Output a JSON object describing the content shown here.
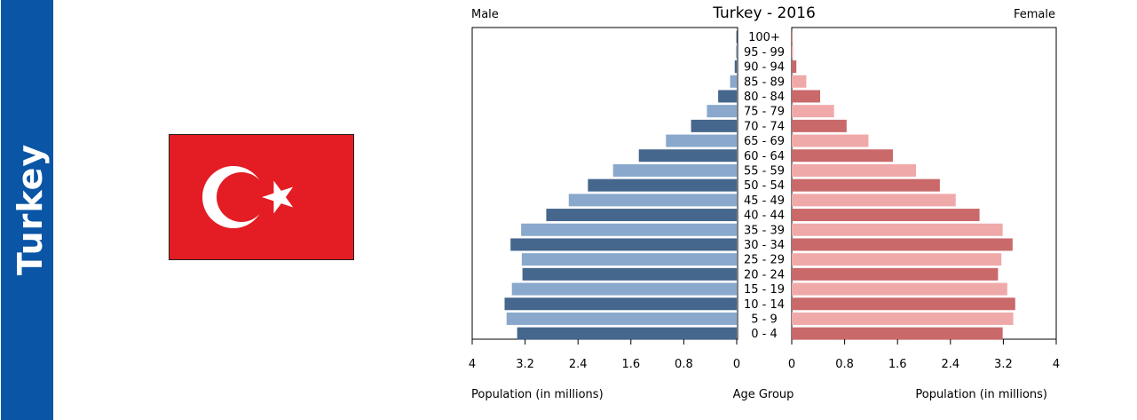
{
  "country_label": "Turkey",
  "flag": {
    "icon": "turkey-flag-icon",
    "field_color": "#e31d23",
    "emblem_color": "#ffffff"
  },
  "chart_data": {
    "type": "population-pyramid",
    "title": "Turkey - 2016",
    "left_label": "Male",
    "right_label": "Female",
    "xlabel_left": "Population (in millions)",
    "xlabel_center": "Age Group",
    "xlabel_right": "Population (in millions)",
    "xlim": [
      0,
      4
    ],
    "ticks": [
      0,
      0.8,
      1.6,
      2.4,
      3.2,
      4
    ],
    "tick_labels_left": [
      "4",
      "3.2",
      "2.4",
      "1.6",
      "0.8",
      "0"
    ],
    "tick_labels_right": [
      "0",
      "0.8",
      "1.6",
      "2.4",
      "3.2",
      "4"
    ],
    "age_groups": [
      "0 - 4",
      "5 - 9",
      "10 - 14",
      "15 - 19",
      "20 - 24",
      "25 - 29",
      "30 - 34",
      "35 - 39",
      "40 - 44",
      "45 - 49",
      "50 - 54",
      "55 - 59",
      "60 - 64",
      "65 - 69",
      "70 - 74",
      "75 - 79",
      "80 - 84",
      "85 - 89",
      "90 - 94",
      "95 - 99",
      "100+"
    ],
    "series": [
      {
        "name": "Male",
        "values": [
          3.32,
          3.48,
          3.51,
          3.4,
          3.24,
          3.25,
          3.42,
          3.26,
          2.88,
          2.54,
          2.25,
          1.87,
          1.48,
          1.07,
          0.69,
          0.45,
          0.28,
          0.1,
          0.03,
          0.01,
          0.005
        ]
      },
      {
        "name": "Female",
        "values": [
          3.19,
          3.35,
          3.38,
          3.26,
          3.12,
          3.17,
          3.34,
          3.19,
          2.84,
          2.48,
          2.24,
          1.88,
          1.53,
          1.16,
          0.83,
          0.64,
          0.43,
          0.22,
          0.07,
          0.02,
          0.005
        ]
      }
    ],
    "colors": {
      "male_dark": "#45668d",
      "male_light": "#89a8cc",
      "female_dark": "#c9696a",
      "female_light": "#f0a9a9"
    }
  }
}
